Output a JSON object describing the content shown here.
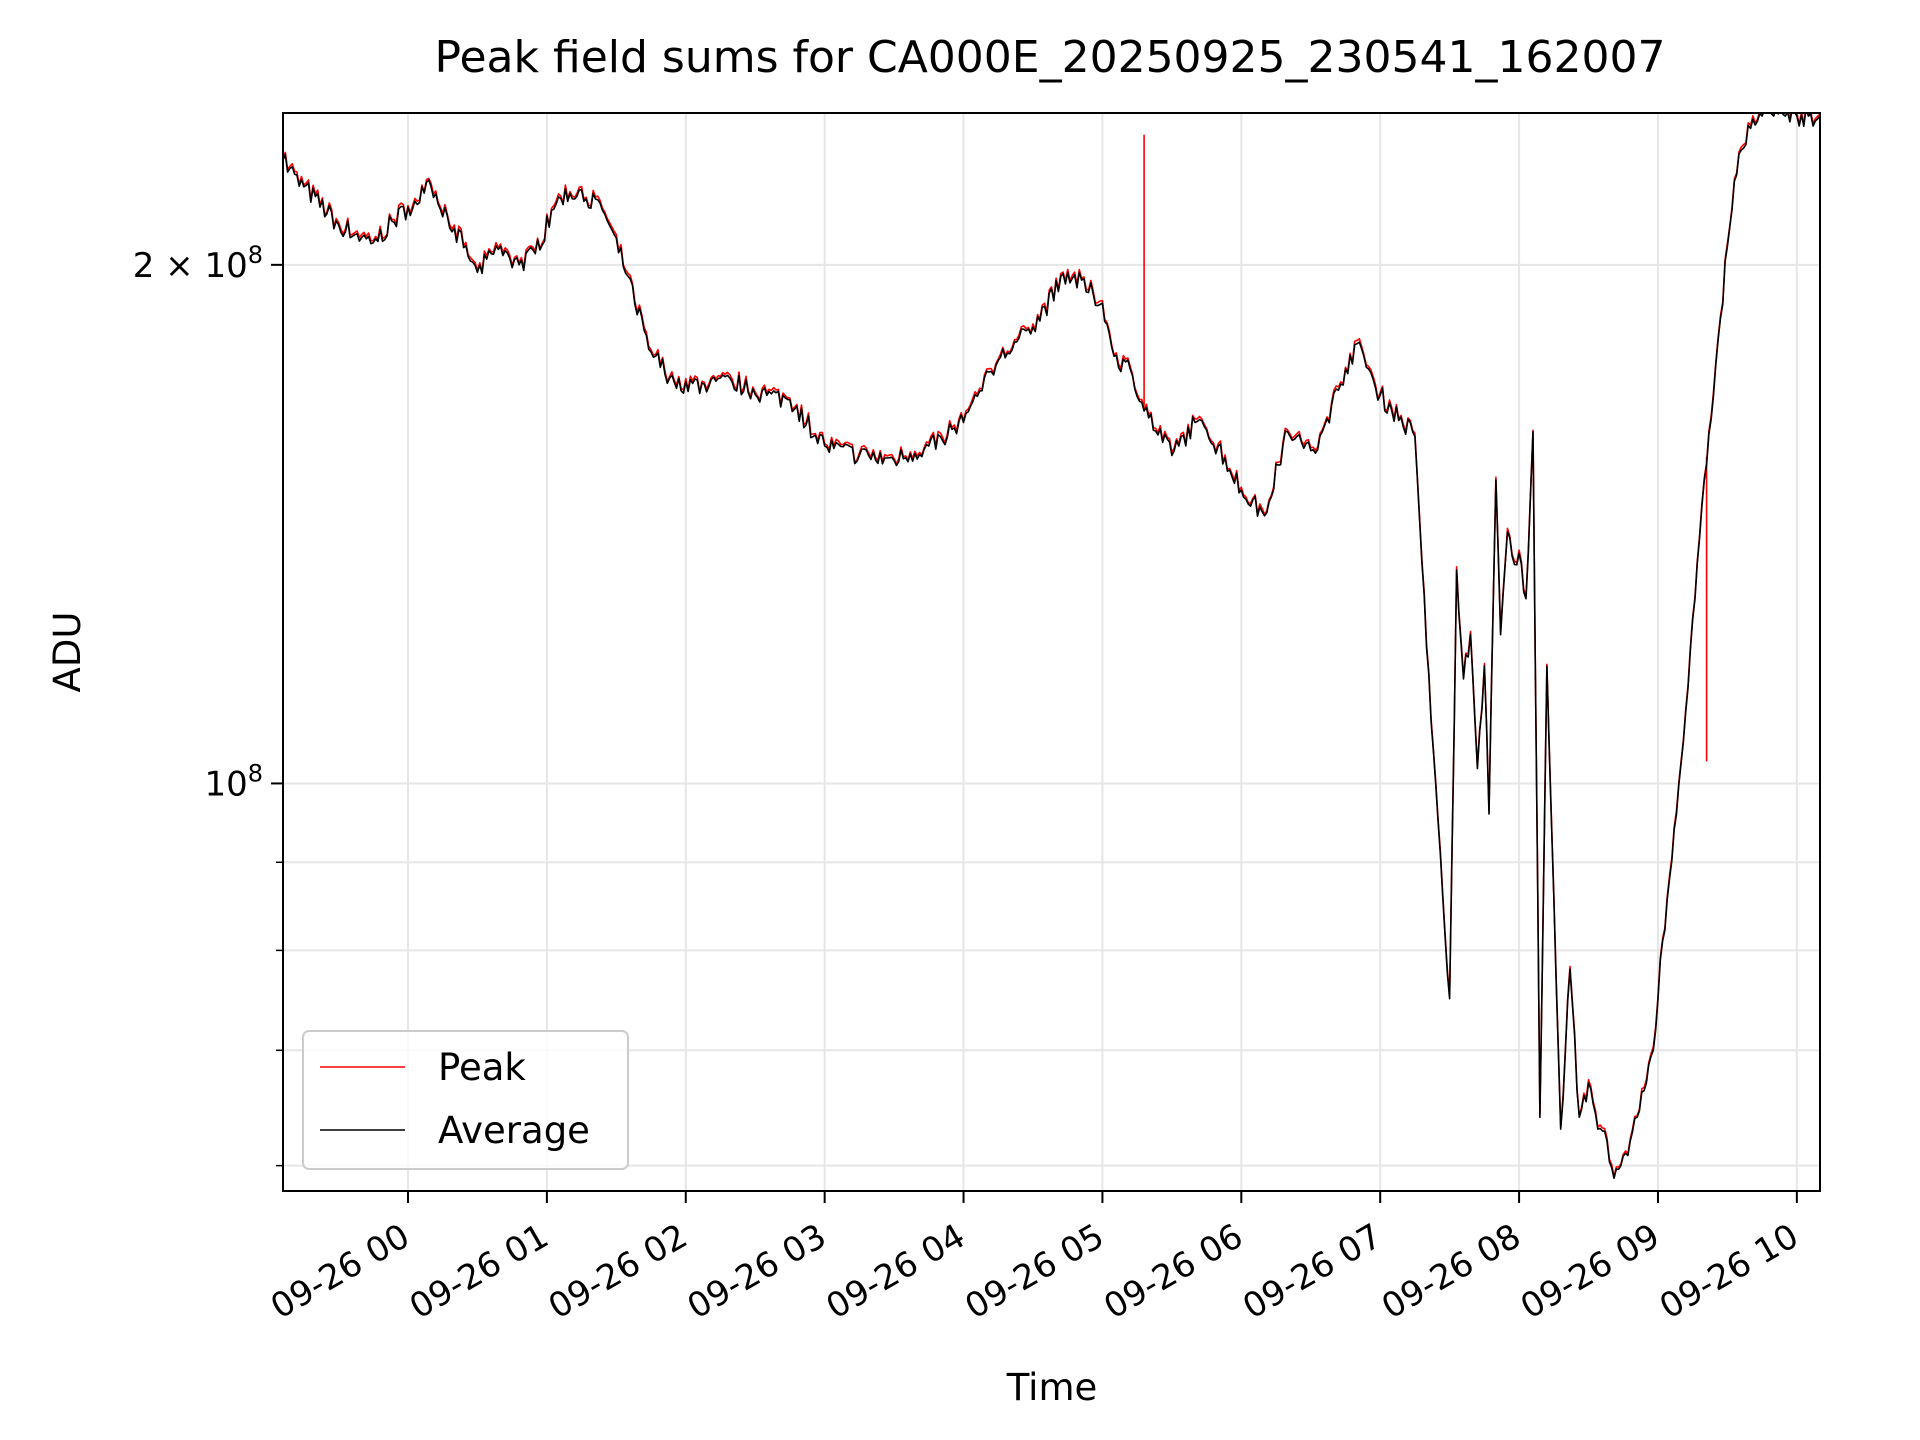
{
  "chart_data": {
    "type": "line",
    "title": "Peak field sums for CA000E_20250925_230541_162007",
    "xlabel": "Time",
    "ylabel": "ADU",
    "yscale": "log",
    "ylim": [
      58000000,
      245000000
    ],
    "xlim": [
      "2025-09-25 23:06",
      "2025-09-26 10:10"
    ],
    "grid": true,
    "legend_position": "lower-left",
    "x_ticks": [
      "09-26 00",
      "09-26 01",
      "09-26 02",
      "09-26 03",
      "09-26 04",
      "09-26 05",
      "09-26 06",
      "09-26 07",
      "09-26 08",
      "09-26 09",
      "09-26 10"
    ],
    "y_ticks": [
      {
        "value": 200000000,
        "label_base": "2 × 10",
        "label_exp": "8"
      },
      {
        "value": 100000000,
        "label_base": "10",
        "label_exp": "8"
      }
    ],
    "y_minor_ticks": [
      60000000,
      70000000,
      80000000,
      90000000
    ],
    "series": [
      {
        "name": "Peak",
        "color": "#ff0000"
      },
      {
        "name": "Average",
        "color": "#000000"
      }
    ],
    "x": [
      "2025-09-25 23:06",
      "2025-09-25 23:15",
      "2025-09-25 23:30",
      "2025-09-25 23:45",
      "2025-09-26 00:00",
      "2025-09-26 00:10",
      "2025-09-26 00:20",
      "2025-09-26 00:30",
      "2025-09-26 00:40",
      "2025-09-26 00:48",
      "2025-09-26 00:55",
      "2025-09-26 01:05",
      "2025-09-26 01:15",
      "2025-09-26 01:25",
      "2025-09-26 01:35",
      "2025-09-26 01:45",
      "2025-09-26 01:55",
      "2025-09-26 02:10",
      "2025-09-26 02:20",
      "2025-09-26 02:35",
      "2025-09-26 02:45",
      "2025-09-26 03:00",
      "2025-09-26 03:15",
      "2025-09-26 03:30",
      "2025-09-26 03:45",
      "2025-09-26 04:00",
      "2025-09-26 04:15",
      "2025-09-26 04:30",
      "2025-09-26 04:45",
      "2025-09-26 05:00",
      "2025-09-26 05:05",
      "2025-09-26 05:12",
      "2025-09-26 05:20",
      "2025-09-26 05:30",
      "2025-09-26 05:40",
      "2025-09-26 05:50",
      "2025-09-26 06:00",
      "2025-09-26 06:10",
      "2025-09-26 06:20",
      "2025-09-26 06:30",
      "2025-09-26 06:35",
      "2025-09-26 06:45",
      "2025-09-26 06:50",
      "2025-09-26 07:00",
      "2025-09-26 07:15",
      "2025-09-26 07:20",
      "2025-09-26 07:25",
      "2025-09-26 07:30",
      "2025-09-26 07:33",
      "2025-09-26 07:36",
      "2025-09-26 07:39",
      "2025-09-26 07:42",
      "2025-09-26 07:45",
      "2025-09-26 07:47",
      "2025-09-26 07:50",
      "2025-09-26 07:52",
      "2025-09-26 07:55",
      "2025-09-26 07:58",
      "2025-09-26 08:00",
      "2025-09-26 08:03",
      "2025-09-26 08:06",
      "2025-09-26 08:09",
      "2025-09-26 08:12",
      "2025-09-26 08:15",
      "2025-09-26 08:18",
      "2025-09-26 08:22",
      "2025-09-26 08:26",
      "2025-09-26 08:30",
      "2025-09-26 08:34",
      "2025-09-26 08:38",
      "2025-09-26 08:41",
      "2025-09-26 08:44",
      "2025-09-26 08:46",
      "2025-09-26 08:48",
      "2025-09-26 08:51",
      "2025-09-26 08:55",
      "2025-09-26 08:58",
      "2025-09-26 09:00",
      "2025-09-26 09:02",
      "2025-09-26 09:05",
      "2025-09-26 09:08",
      "2025-09-26 09:12",
      "2025-09-26 09:16",
      "2025-09-26 09:20",
      "2025-09-26 09:25",
      "2025-09-26 09:30",
      "2025-09-26 09:35",
      "2025-09-26 09:40",
      "2025-09-26 09:45",
      "2025-09-26 09:50",
      "2025-09-26 09:55",
      "2025-09-26 10:00",
      "2025-09-26 10:05",
      "2025-09-26 10:10"
    ],
    "average_values": [
      230000000,
      222000000,
      211000000,
      206000000,
      216000000,
      222000000,
      210000000,
      198000000,
      205000000,
      200000000,
      203000000,
      219000000,
      221000000,
      214000000,
      197000000,
      178000000,
      171000000,
      170000000,
      171000000,
      168000000,
      167000000,
      157000000,
      155000000,
      154000000,
      157000000,
      162000000,
      176000000,
      184000000,
      198000000,
      190000000,
      177000000,
      174000000,
      163000000,
      155000000,
      162000000,
      157000000,
      148000000,
      143000000,
      160000000,
      156000000,
      160000000,
      174000000,
      180000000,
      168000000,
      159000000,
      120000000,
      95000000,
      75000000,
      133000000,
      115000000,
      122000000,
      102000000,
      117000000,
      96000000,
      150000000,
      122000000,
      140000000,
      134000000,
      136000000,
      128000000,
      160000000,
      64000000,
      117000000,
      86000000,
      63000000,
      78000000,
      64000000,
      67000000,
      63000000,
      62000000,
      59000000,
      60000000,
      61000000,
      62000000,
      64000000,
      67000000,
      70000000,
      75000000,
      81000000,
      88000000,
      96000000,
      110000000,
      128000000,
      150000000,
      175000000,
      205000000,
      232000000,
      240000000,
      244000000,
      244000000,
      244000000,
      244000000,
      244000000,
      244000000
    ],
    "peak_spikes": [
      {
        "x": "2025-09-26 05:18",
        "value": 238000000
      },
      {
        "x": "2025-09-26 09:21",
        "value": 103000000
      }
    ]
  }
}
